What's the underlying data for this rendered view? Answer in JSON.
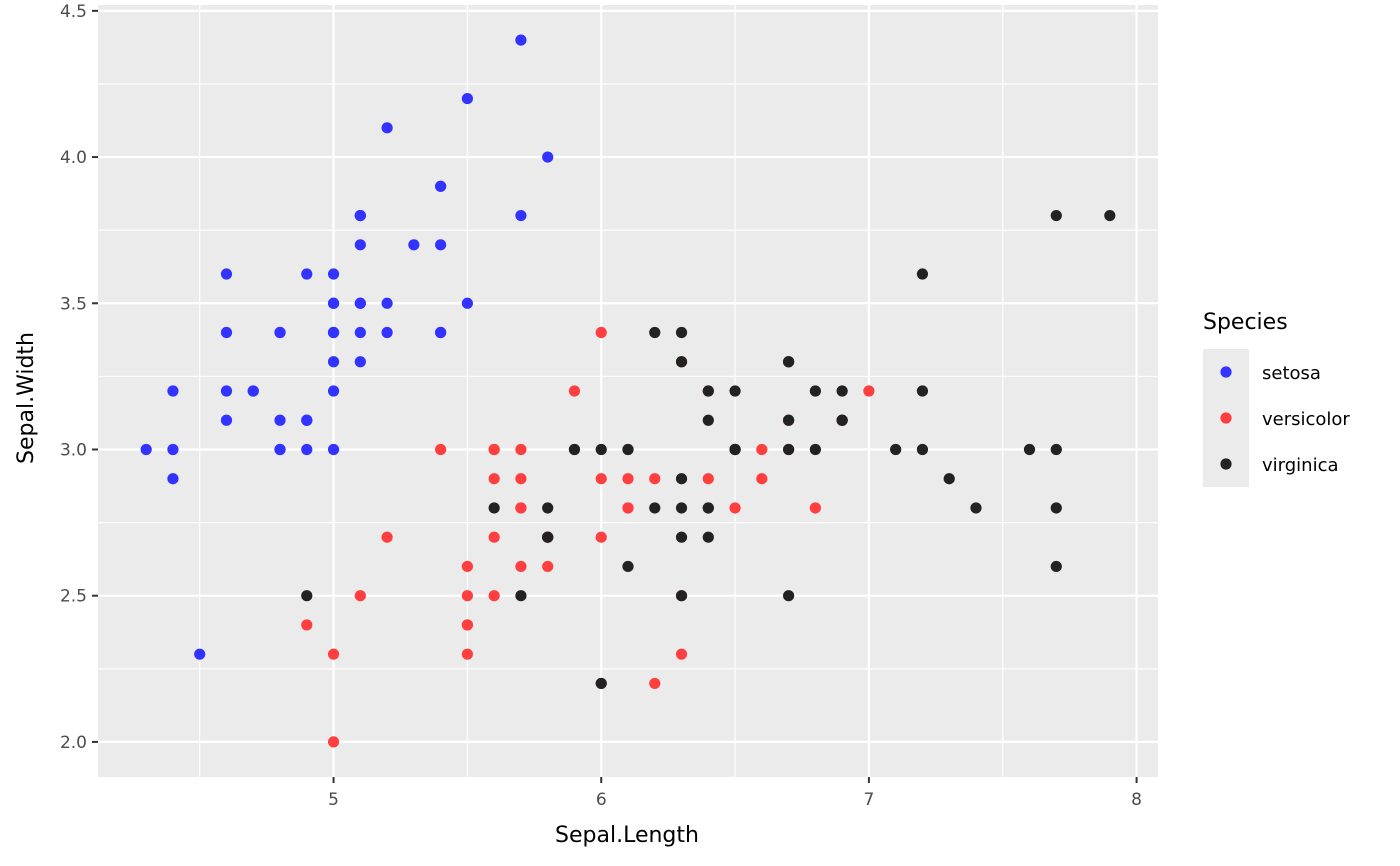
{
  "chart_data": {
    "type": "scatter",
    "xlabel": "Sepal.Length",
    "ylabel": "Sepal.Width",
    "xlim": [
      4.12,
      8.08
    ],
    "ylim": [
      1.88,
      4.52
    ],
    "x_ticks": [
      5,
      6,
      7,
      8
    ],
    "x_tick_labels": [
      "5",
      "6",
      "7",
      "8"
    ],
    "y_ticks": [
      2.0,
      2.5,
      3.0,
      3.5,
      4.0,
      4.5
    ],
    "y_tick_labels": [
      "2.0",
      "2.5",
      "3.0",
      "3.5",
      "4.0",
      "4.5"
    ],
    "grid": true,
    "legend": {
      "title": "Species",
      "position": "right"
    },
    "series": [
      {
        "name": "setosa",
        "color": "#3333ff",
        "points": [
          [
            5.1,
            3.5
          ],
          [
            4.9,
            3.0
          ],
          [
            4.7,
            3.2
          ],
          [
            4.6,
            3.1
          ],
          [
            5.0,
            3.6
          ],
          [
            5.4,
            3.9
          ],
          [
            4.6,
            3.4
          ],
          [
            5.0,
            3.4
          ],
          [
            4.4,
            2.9
          ],
          [
            4.9,
            3.1
          ],
          [
            5.4,
            3.7
          ],
          [
            4.8,
            3.4
          ],
          [
            4.8,
            3.0
          ],
          [
            4.3,
            3.0
          ],
          [
            5.8,
            4.0
          ],
          [
            5.7,
            4.4
          ],
          [
            5.4,
            3.9
          ],
          [
            5.1,
            3.5
          ],
          [
            5.7,
            3.8
          ],
          [
            5.1,
            3.8
          ],
          [
            5.4,
            3.4
          ],
          [
            5.1,
            3.7
          ],
          [
            4.6,
            3.6
          ],
          [
            5.1,
            3.3
          ],
          [
            4.8,
            3.4
          ],
          [
            5.0,
            3.0
          ],
          [
            5.0,
            3.4
          ],
          [
            5.2,
            3.5
          ],
          [
            5.2,
            3.4
          ],
          [
            4.7,
            3.2
          ],
          [
            4.8,
            3.1
          ],
          [
            5.4,
            3.4
          ],
          [
            5.2,
            4.1
          ],
          [
            5.5,
            4.2
          ],
          [
            4.9,
            3.1
          ],
          [
            5.0,
            3.2
          ],
          [
            5.5,
            3.5
          ],
          [
            4.9,
            3.6
          ],
          [
            4.4,
            3.0
          ],
          [
            5.1,
            3.4
          ],
          [
            5.0,
            3.5
          ],
          [
            4.5,
            2.3
          ],
          [
            4.4,
            3.2
          ],
          [
            5.0,
            3.5
          ],
          [
            5.1,
            3.8
          ],
          [
            4.8,
            3.0
          ],
          [
            5.1,
            3.8
          ],
          [
            4.6,
            3.2
          ],
          [
            5.3,
            3.7
          ],
          [
            5.0,
            3.3
          ]
        ]
      },
      {
        "name": "versicolor",
        "color": "#ff3f3f",
        "points": [
          [
            7.0,
            3.2
          ],
          [
            6.4,
            3.2
          ],
          [
            6.9,
            3.1
          ],
          [
            5.5,
            2.3
          ],
          [
            6.5,
            2.8
          ],
          [
            5.7,
            2.8
          ],
          [
            6.3,
            3.3
          ],
          [
            4.9,
            2.4
          ],
          [
            6.6,
            2.9
          ],
          [
            5.2,
            2.7
          ],
          [
            5.0,
            2.0
          ],
          [
            5.9,
            3.0
          ],
          [
            6.0,
            2.2
          ],
          [
            6.1,
            2.9
          ],
          [
            5.6,
            2.9
          ],
          [
            6.7,
            3.1
          ],
          [
            5.6,
            3.0
          ],
          [
            5.8,
            2.7
          ],
          [
            6.2,
            2.2
          ],
          [
            5.6,
            2.5
          ],
          [
            5.9,
            3.2
          ],
          [
            6.1,
            2.8
          ],
          [
            6.3,
            2.5
          ],
          [
            6.1,
            2.8
          ],
          [
            6.4,
            2.9
          ],
          [
            6.6,
            3.0
          ],
          [
            6.8,
            2.8
          ],
          [
            6.7,
            3.0
          ],
          [
            6.0,
            2.9
          ],
          [
            5.7,
            2.6
          ],
          [
            5.5,
            2.4
          ],
          [
            5.5,
            2.4
          ],
          [
            5.8,
            2.7
          ],
          [
            6.0,
            2.7
          ],
          [
            5.4,
            3.0
          ],
          [
            6.0,
            3.4
          ],
          [
            6.7,
            3.1
          ],
          [
            6.3,
            2.3
          ],
          [
            5.6,
            3.0
          ],
          [
            5.5,
            2.5
          ],
          [
            5.5,
            2.6
          ],
          [
            6.1,
            3.0
          ],
          [
            5.8,
            2.6
          ],
          [
            5.0,
            2.3
          ],
          [
            5.6,
            2.7
          ],
          [
            5.7,
            3.0
          ],
          [
            5.7,
            2.9
          ],
          [
            6.2,
            2.9
          ],
          [
            5.1,
            2.5
          ],
          [
            5.7,
            2.8
          ]
        ]
      },
      {
        "name": "virginica",
        "color": "#222222",
        "points": [
          [
            6.3,
            3.3
          ],
          [
            5.8,
            2.7
          ],
          [
            7.1,
            3.0
          ],
          [
            6.3,
            2.9
          ],
          [
            6.5,
            3.0
          ],
          [
            7.6,
            3.0
          ],
          [
            4.9,
            2.5
          ],
          [
            7.3,
            2.9
          ],
          [
            6.7,
            2.5
          ],
          [
            7.2,
            3.6
          ],
          [
            6.5,
            3.2
          ],
          [
            6.4,
            2.7
          ],
          [
            6.8,
            3.0
          ],
          [
            5.7,
            2.5
          ],
          [
            5.8,
            2.8
          ],
          [
            6.4,
            3.2
          ],
          [
            6.5,
            3.0
          ],
          [
            7.7,
            3.8
          ],
          [
            7.7,
            2.6
          ],
          [
            6.0,
            2.2
          ],
          [
            6.9,
            3.2
          ],
          [
            5.6,
            2.8
          ],
          [
            7.7,
            2.8
          ],
          [
            6.3,
            2.7
          ],
          [
            6.7,
            3.3
          ],
          [
            7.2,
            3.2
          ],
          [
            6.2,
            2.8
          ],
          [
            6.1,
            3.0
          ],
          [
            6.4,
            2.8
          ],
          [
            7.2,
            3.0
          ],
          [
            7.4,
            2.8
          ],
          [
            7.9,
            3.8
          ],
          [
            6.4,
            2.8
          ],
          [
            6.3,
            2.8
          ],
          [
            6.1,
            2.6
          ],
          [
            7.7,
            3.0
          ],
          [
            6.3,
            3.4
          ],
          [
            6.4,
            3.1
          ],
          [
            6.0,
            3.0
          ],
          [
            6.9,
            3.1
          ],
          [
            6.7,
            3.1
          ],
          [
            6.9,
            3.1
          ],
          [
            5.8,
            2.7
          ],
          [
            6.8,
            3.2
          ],
          [
            6.7,
            3.3
          ],
          [
            6.7,
            3.0
          ],
          [
            6.3,
            2.5
          ],
          [
            6.5,
            3.0
          ],
          [
            6.2,
            3.4
          ],
          [
            5.9,
            3.0
          ]
        ]
      }
    ]
  }
}
